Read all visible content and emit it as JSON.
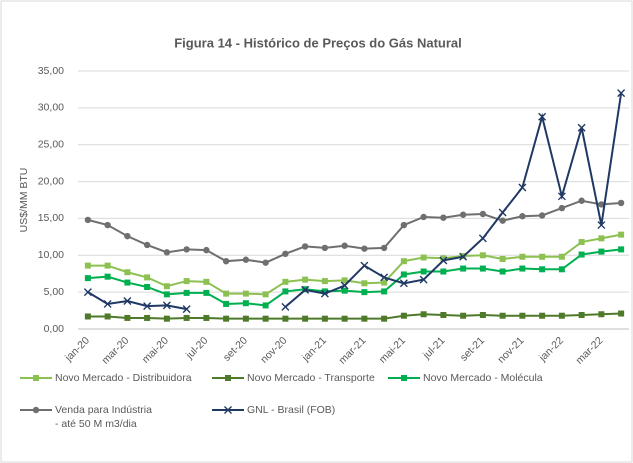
{
  "chart_data": {
    "type": "line",
    "title": "Figura 14 - Histórico de Preços do Gás Natural",
    "y_label": "US$/MM BTU",
    "categories": [
      "jan-20",
      null,
      "mar-20",
      null,
      "mai-20",
      null,
      "jul-20",
      null,
      "set-20",
      null,
      "nov-20",
      null,
      "jan-21",
      null,
      "mar-21",
      null,
      "mai-21",
      null,
      "jul-21",
      null,
      "set-21",
      null,
      "nov-21",
      null,
      "jan-22",
      null,
      "mar-22",
      null
    ],
    "ylim": [
      0,
      35
    ],
    "yticks": [
      {
        "value": 0,
        "label": "0,00"
      },
      {
        "value": 5,
        "label": "5,00"
      },
      {
        "value": 10,
        "label": "10,00"
      },
      {
        "value": 15,
        "label": "15,00"
      },
      {
        "value": 20,
        "label": "20,00"
      },
      {
        "value": 25,
        "label": "25,00"
      },
      {
        "value": 30,
        "label": "30,00"
      },
      {
        "value": 35,
        "label": "35,00"
      }
    ],
    "grid": true,
    "legend": "bottom",
    "series": [
      {
        "name": "Novo Mercado - Distribuidora",
        "color": "#8cc152",
        "marker": "square",
        "values": [
          8.6,
          8.6,
          7.7,
          7.0,
          5.8,
          6.5,
          6.4,
          4.8,
          4.8,
          4.7,
          6.4,
          6.7,
          6.5,
          6.6,
          6.2,
          6.3,
          9.2,
          9.7,
          9.6,
          9.9,
          10.0,
          9.5,
          9.8,
          9.8,
          9.8,
          11.8,
          12.3,
          12.8
        ]
      },
      {
        "name": "Novo Mercado - Transporte",
        "color": "#4e7a2a",
        "marker": "square",
        "values": [
          1.7,
          1.7,
          1.5,
          1.5,
          1.4,
          1.5,
          1.5,
          1.4,
          1.4,
          1.4,
          1.4,
          1.4,
          1.4,
          1.4,
          1.4,
          1.4,
          1.8,
          2.0,
          1.9,
          1.8,
          1.9,
          1.8,
          1.8,
          1.8,
          1.8,
          1.9,
          2.0,
          2.1
        ]
      },
      {
        "name": "Novo Mercado - Molécula",
        "color": "#00b050",
        "marker": "square",
        "values": [
          6.9,
          7.1,
          6.3,
          5.7,
          4.7,
          4.9,
          4.9,
          3.4,
          3.5,
          3.2,
          5.1,
          5.4,
          5.1,
          5.2,
          5.0,
          5.1,
          7.4,
          7.8,
          7.8,
          8.2,
          8.2,
          7.8,
          8.2,
          8.1,
          8.1,
          10.1,
          10.5,
          10.8
        ]
      },
      {
        "name": "Venda para Indústria\n - até 50 M m3/dia",
        "color": "#6f6f6f",
        "marker": "circle",
        "values": [
          14.8,
          14.1,
          12.6,
          11.4,
          10.4,
          10.8,
          10.7,
          9.2,
          9.4,
          9.0,
          10.2,
          11.2,
          11.0,
          11.3,
          10.9,
          11.0,
          14.1,
          15.2,
          15.1,
          15.5,
          15.6,
          14.7,
          15.3,
          15.4,
          16.4,
          17.4,
          16.9,
          17.1
        ]
      },
      {
        "name": "GNL - Brasil (FOB)",
        "color": "#203864",
        "marker": "x",
        "values": [
          5.0,
          3.4,
          3.8,
          3.1,
          3.2,
          2.7,
          null,
          null,
          null,
          null,
          3.0,
          5.3,
          4.8,
          5.9,
          8.6,
          7.0,
          6.2,
          6.7,
          9.3,
          9.8,
          12.3,
          15.8,
          19.2,
          28.8,
          18.0,
          27.3,
          14.1,
          32.0
        ]
      }
    ]
  }
}
